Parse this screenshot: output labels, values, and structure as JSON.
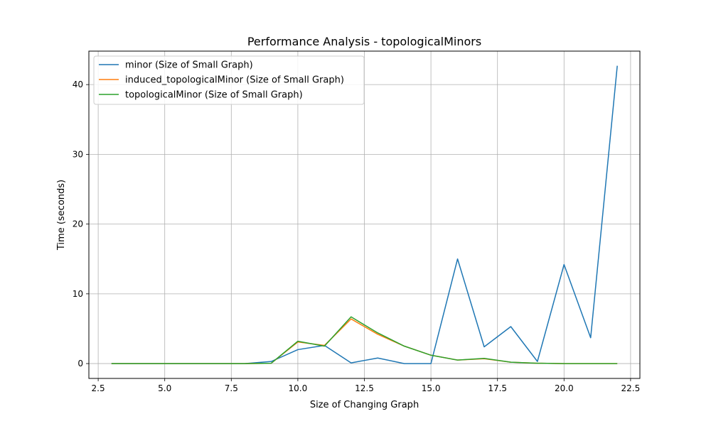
{
  "chart_data": {
    "type": "line",
    "title": "Performance Analysis - topologicalMinors",
    "xlabel": "Size of Changing Graph",
    "ylabel": "Time (seconds)",
    "xlim": [
      2.15,
      22.85
    ],
    "ylim": [
      -2.13,
      44.8
    ],
    "xticks": [
      2.5,
      5.0,
      7.5,
      10.0,
      12.5,
      15.0,
      17.5,
      20.0,
      22.5
    ],
    "xtick_labels": [
      "2.5",
      "5.0",
      "7.5",
      "10.0",
      "12.5",
      "15.0",
      "17.5",
      "20.0",
      "22.5"
    ],
    "yticks": [
      0,
      10,
      20,
      30,
      40
    ],
    "ytick_labels": [
      "0",
      "10",
      "20",
      "30",
      "40"
    ],
    "grid": true,
    "legend_position": "top-left",
    "x": [
      3,
      4,
      5,
      6,
      7,
      8,
      9,
      10,
      11,
      12,
      13,
      14,
      15,
      16,
      17,
      18,
      19,
      20,
      21,
      22
    ],
    "series": [
      {
        "name": "minor (Size of Small Graph)",
        "color": "#1f77b4",
        "values": [
          0,
          0,
          0,
          0,
          0,
          0,
          0.3,
          2.0,
          2.6,
          0.1,
          0.8,
          0,
          0,
          15.0,
          2.4,
          5.3,
          0.3,
          14.2,
          3.7,
          42.7
        ]
      },
      {
        "name": "induced_topologicalMinor (Size of Small Graph)",
        "color": "#ff7f0e",
        "values": [
          0,
          0,
          0,
          0,
          0,
          0,
          0.05,
          3.1,
          2.6,
          6.4,
          4.2,
          2.5,
          1.2,
          0.5,
          0.7,
          0.2,
          0.05,
          0,
          0,
          0
        ]
      },
      {
        "name": "topologicalMinor (Size of Small Graph)",
        "color": "#2ca02c",
        "values": [
          0,
          0,
          0,
          0,
          0,
          0,
          0.05,
          3.2,
          2.5,
          6.7,
          4.4,
          2.5,
          1.2,
          0.5,
          0.75,
          0.2,
          0.05,
          0,
          0,
          0
        ]
      }
    ]
  }
}
